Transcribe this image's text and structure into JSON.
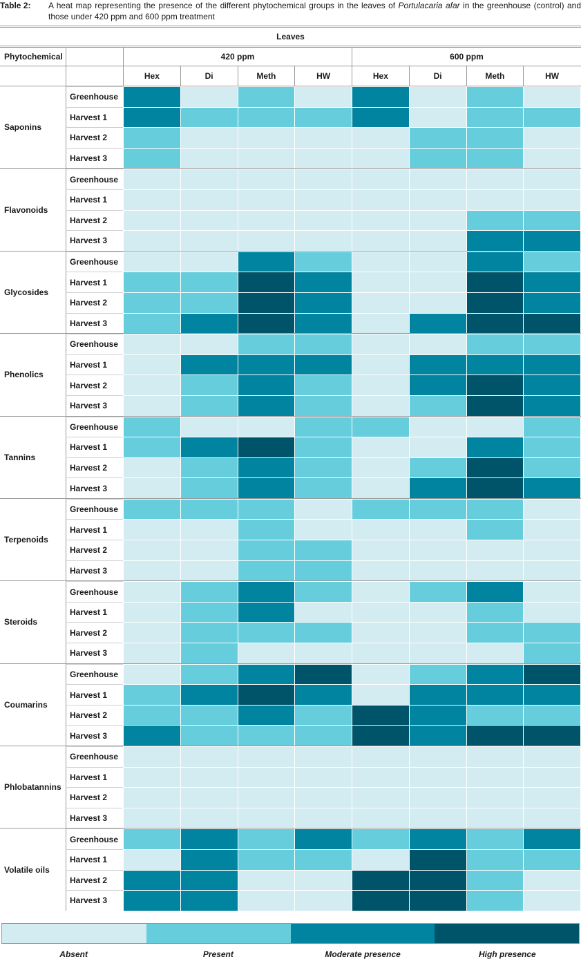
{
  "caption": {
    "label": "Table 2:",
    "text_before": "A heat map representing the presence of the different phytochemical groups in the leaves of ",
    "species": "Portulacaria afar",
    "text_after": " in the greenhouse (control) and those under 420 ppm and 600 ppm treatment"
  },
  "header": {
    "top": "Leaves",
    "phyto_label": "Phytochemical",
    "groups": [
      "420 ppm",
      "600 ppm"
    ],
    "columns": [
      "Hex",
      "Di",
      "Meth",
      "HW",
      "Hex",
      "Di",
      "Meth",
      "HW"
    ]
  },
  "colors": {
    "absent": "#d3ecf2",
    "present": "#66cddd",
    "moderate": "#0084a0",
    "high": "#005469"
  },
  "chart_data": {
    "type": "heatmap",
    "levels": [
      "Absent",
      "Present",
      "Moderate presence",
      "High presence"
    ],
    "level_codes": {
      "0": "Absent",
      "1": "Present",
      "2": "Moderate presence",
      "3": "High presence"
    },
    "stages": [
      "Greenhouse",
      "Harvest 1",
      "Harvest 2",
      "Harvest 3"
    ],
    "groups": [
      {
        "name": "Saponins",
        "rows": [
          [
            2,
            0,
            1,
            0,
            2,
            0,
            1,
            0
          ],
          [
            2,
            1,
            1,
            1,
            2,
            0,
            1,
            1
          ],
          [
            1,
            0,
            0,
            0,
            0,
            1,
            1,
            0
          ],
          [
            1,
            0,
            0,
            0,
            0,
            1,
            1,
            0
          ]
        ]
      },
      {
        "name": "Flavonoids",
        "rows": [
          [
            0,
            0,
            0,
            0,
            0,
            0,
            0,
            0
          ],
          [
            0,
            0,
            0,
            0,
            0,
            0,
            0,
            0
          ],
          [
            0,
            0,
            0,
            0,
            0,
            0,
            1,
            1
          ],
          [
            0,
            0,
            0,
            0,
            0,
            0,
            2,
            2
          ]
        ]
      },
      {
        "name": "Glycosides",
        "rows": [
          [
            0,
            0,
            2,
            1,
            0,
            0,
            2,
            1
          ],
          [
            1,
            1,
            3,
            2,
            0,
            0,
            3,
            2
          ],
          [
            1,
            1,
            3,
            2,
            0,
            0,
            3,
            2
          ],
          [
            1,
            2,
            3,
            2,
            0,
            2,
            3,
            3
          ]
        ]
      },
      {
        "name": "Phenolics",
        "rows": [
          [
            0,
            0,
            1,
            1,
            0,
            0,
            1,
            1
          ],
          [
            0,
            2,
            2,
            2,
            0,
            2,
            2,
            2
          ],
          [
            0,
            1,
            2,
            1,
            0,
            2,
            3,
            2
          ],
          [
            0,
            1,
            2,
            1,
            0,
            1,
            3,
            2
          ]
        ]
      },
      {
        "name": "Tannins",
        "rows": [
          [
            1,
            0,
            0,
            1,
            1,
            0,
            0,
            1
          ],
          [
            1,
            2,
            3,
            1,
            0,
            0,
            2,
            1
          ],
          [
            0,
            1,
            2,
            1,
            0,
            1,
            3,
            1
          ],
          [
            0,
            1,
            2,
            1,
            0,
            2,
            3,
            2
          ]
        ]
      },
      {
        "name": "Terpenoids",
        "rows": [
          [
            1,
            1,
            1,
            0,
            1,
            1,
            1,
            0
          ],
          [
            0,
            0,
            1,
            0,
            0,
            0,
            1,
            0
          ],
          [
            0,
            0,
            1,
            1,
            0,
            0,
            0,
            0
          ],
          [
            0,
            0,
            1,
            1,
            0,
            0,
            0,
            0
          ]
        ]
      },
      {
        "name": "Steroids",
        "rows": [
          [
            0,
            1,
            2,
            1,
            0,
            1,
            2,
            0
          ],
          [
            0,
            1,
            2,
            0,
            0,
            0,
            1,
            0
          ],
          [
            0,
            1,
            1,
            1,
            0,
            0,
            1,
            1
          ],
          [
            0,
            1,
            0,
            0,
            0,
            0,
            0,
            1
          ]
        ]
      },
      {
        "name": "Coumarins",
        "rows": [
          [
            0,
            1,
            2,
            3,
            0,
            1,
            2,
            3
          ],
          [
            1,
            2,
            3,
            2,
            0,
            2,
            2,
            2
          ],
          [
            1,
            1,
            2,
            1,
            3,
            2,
            1,
            1
          ],
          [
            2,
            1,
            1,
            1,
            3,
            2,
            3,
            3
          ]
        ]
      },
      {
        "name": "Phlobatannins",
        "rows": [
          [
            0,
            0,
            0,
            0,
            0,
            0,
            0,
            0
          ],
          [
            0,
            0,
            0,
            0,
            0,
            0,
            0,
            0
          ],
          [
            0,
            0,
            0,
            0,
            0,
            0,
            0,
            0
          ],
          [
            0,
            0,
            0,
            0,
            0,
            0,
            0,
            0
          ]
        ]
      },
      {
        "name": "Volatile oils",
        "rows": [
          [
            1,
            2,
            1,
            2,
            1,
            2,
            1,
            2
          ],
          [
            0,
            2,
            1,
            1,
            0,
            3,
            1,
            1
          ],
          [
            2,
            2,
            0,
            0,
            3,
            3,
            1,
            0
          ],
          [
            2,
            2,
            0,
            0,
            3,
            3,
            1,
            0
          ]
        ]
      }
    ]
  },
  "legend": {
    "labels": [
      "Absent",
      "Present",
      "Moderate presence",
      "High presence"
    ]
  }
}
